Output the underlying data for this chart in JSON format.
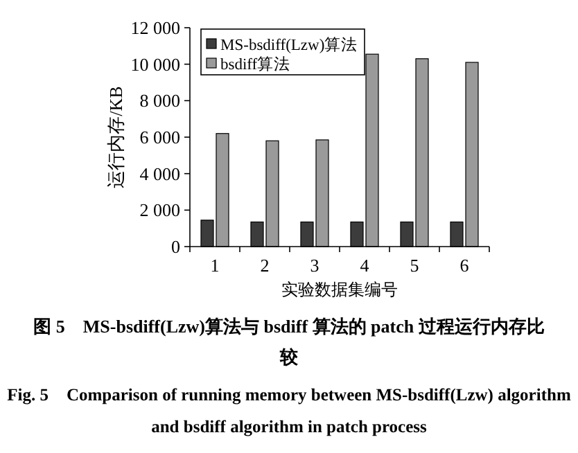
{
  "chart_data": {
    "type": "bar",
    "title": "图 5　MS-bsdiff(Lzw)算法与 bsdiff 算法的 patch 过程运行内存比较",
    "subtitle": "Fig. 5　Comparison of running memory between MS-bsdiff(Lzw) algorithm and bsdiff algorithm in patch process",
    "xlabel": "实验数据集编号",
    "ylabel": "运行内存/KB",
    "categories": [
      "1",
      "2",
      "3",
      "4",
      "5",
      "6"
    ],
    "series": [
      {
        "name": "MS-bsdiff(Lzw)算法",
        "color": "#3c3c3c",
        "values": [
          1450,
          1350,
          1350,
          1350,
          1350,
          1350
        ]
      },
      {
        "name": "bsdiff算法",
        "color": "#9a9a9a",
        "values": [
          6200,
          5800,
          5850,
          10550,
          10300,
          10100
        ]
      }
    ],
    "ylim": [
      0,
      12000
    ],
    "yticks": [
      0,
      {
        "value": 2000,
        "label": "2 000"
      },
      {
        "value": 4000,
        "label": "4 000"
      },
      {
        "value": 6000,
        "label": "6 000"
      },
      {
        "value": 8000,
        "label": "8 000"
      },
      {
        "value": 10000,
        "label": "10 000"
      },
      {
        "value": 12000,
        "label": "12 000"
      }
    ],
    "legend": "top left"
  }
}
